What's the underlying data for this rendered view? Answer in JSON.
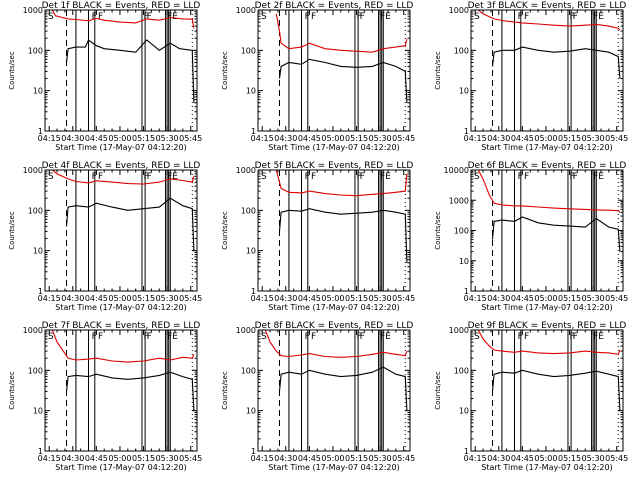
{
  "chart_data": [
    {
      "type": "line",
      "title": "Det 1f BLACK = Events, RED = LLD",
      "ylabel": "Counts/sec",
      "xlabel": "Start Time (17-May-07 04:12:20)",
      "ylim": [
        1,
        1000
      ],
      "yscale": "log",
      "y_ticks": [
        "1",
        "10",
        "100",
        "1000"
      ],
      "x_ticks": [
        "04:15",
        "04:30",
        "04:45",
        "05:00",
        "05:15",
        "05:30",
        "05:45"
      ],
      "markers": [
        "S",
        "F",
        "F",
        "F",
        "F",
        "FE"
      ],
      "series": [
        {
          "name": "RED = LLD",
          "color": "#dd0000",
          "x": [
            "04:17",
            "04:19",
            "04:27",
            "04:32",
            "04:40",
            "04:45",
            "04:50",
            "05:00",
            "05:10",
            "05:17",
            "05:25",
            "05:32",
            "05:40",
            "05:46",
            "05:47"
          ],
          "values": [
            1000,
            720,
            600,
            580,
            540,
            620,
            560,
            500,
            480,
            600,
            560,
            650,
            600,
            590,
            350
          ]
        },
        {
          "name": "BLACK = Events",
          "color": "#000000",
          "x": [
            "04:26",
            "04:27",
            "04:32",
            "04:38",
            "04:40",
            "04:45",
            "04:50",
            "05:00",
            "05:10",
            "05:17",
            "05:25",
            "05:32",
            "05:38",
            "05:46",
            "05:47"
          ],
          "values": [
            50,
            110,
            120,
            120,
            180,
            130,
            110,
            100,
            90,
            180,
            100,
            150,
            110,
            100,
            5
          ]
        }
      ]
    },
    {
      "type": "line",
      "title": "Det 2f BLACK = Events, RED = LLD",
      "ylabel": "Counts/sec",
      "xlabel": "Start Time (17-May-07 04:12:20)",
      "ylim": [
        1,
        1000
      ],
      "yscale": "log",
      "y_ticks": [
        "1",
        "10",
        "100",
        "1000"
      ],
      "x_ticks": [
        "04:15",
        "04:30",
        "04:45",
        "05:00",
        "05:15",
        "05:30",
        "05:45"
      ],
      "markers": [
        "S",
        "F",
        "F",
        "F",
        "F",
        "FE"
      ],
      "series": [
        {
          "name": "RED = LLD",
          "color": "#dd0000",
          "x": [
            "04:24",
            "04:26",
            "04:27",
            "04:32",
            "04:40",
            "04:45",
            "04:55",
            "05:05",
            "05:15",
            "05:25",
            "05:32",
            "05:40",
            "05:46",
            "05:47"
          ],
          "values": [
            800,
            300,
            150,
            110,
            120,
            150,
            110,
            100,
            95,
            90,
            110,
            120,
            130,
            190
          ]
        },
        {
          "name": "BLACK = Events",
          "color": "#000000",
          "x": [
            "04:26",
            "04:27",
            "04:32",
            "04:40",
            "04:45",
            "04:55",
            "05:05",
            "05:15",
            "05:25",
            "05:32",
            "05:40",
            "05:46",
            "05:47"
          ],
          "values": [
            20,
            40,
            50,
            45,
            60,
            50,
            40,
            38,
            40,
            50,
            40,
            30,
            5
          ]
        }
      ]
    },
    {
      "type": "line",
      "title": "Det 3f BLACK = Events, RED = LLD",
      "ylabel": "Counts/sec",
      "xlabel": "Start Time (17-May-07 04:12:20)",
      "ylim": [
        1,
        1000
      ],
      "yscale": "log",
      "y_ticks": [
        "1",
        "10",
        "100",
        "1000"
      ],
      "x_ticks": [
        "04:15",
        "04:30",
        "04:45",
        "05:00",
        "05:15",
        "05:30",
        "05:45"
      ],
      "markers": [
        "S",
        "F",
        "F",
        "F",
        "F",
        "FE"
      ],
      "series": [
        {
          "name": "RED = LLD",
          "color": "#dd0000",
          "x": [
            "04:17",
            "04:20",
            "04:27",
            "04:32",
            "04:40",
            "04:45",
            "04:55",
            "05:05",
            "05:15",
            "05:25",
            "05:32",
            "05:40",
            "05:46",
            "05:47"
          ],
          "values": [
            1000,
            800,
            600,
            550,
            500,
            480,
            450,
            420,
            400,
            420,
            440,
            400,
            350,
            320
          ]
        },
        {
          "name": "BLACK = Events",
          "color": "#000000",
          "x": [
            "04:26",
            "04:27",
            "04:32",
            "04:40",
            "04:45",
            "04:55",
            "05:05",
            "05:15",
            "05:25",
            "05:32",
            "05:40",
            "05:46",
            "05:47"
          ],
          "values": [
            40,
            90,
            100,
            100,
            120,
            100,
            90,
            95,
            110,
            100,
            90,
            70,
            20
          ]
        }
      ]
    },
    {
      "type": "line",
      "title": "Det 4f BLACK = Events, RED = LLD",
      "ylabel": "Counts/sec",
      "xlabel": "Start Time (17-May-07 04:12:20)",
      "ylim": [
        1,
        1000
      ],
      "yscale": "log",
      "y_ticks": [
        "1",
        "10",
        "100",
        "1000"
      ],
      "x_ticks": [
        "04:15",
        "04:30",
        "04:45",
        "05:00",
        "05:15",
        "05:30",
        "05:45"
      ],
      "markers": [
        "S",
        "F",
        "F",
        "F",
        "F",
        "FE"
      ],
      "series": [
        {
          "name": "RED = LLD",
          "color": "#dd0000",
          "x": [
            "04:17",
            "04:20",
            "04:27",
            "04:32",
            "04:40",
            "04:45",
            "04:55",
            "05:05",
            "05:15",
            "05:25",
            "05:32",
            "05:40",
            "05:46",
            "05:47"
          ],
          "values": [
            1000,
            800,
            600,
            520,
            480,
            540,
            500,
            460,
            450,
            500,
            600,
            550,
            500,
            700
          ]
        },
        {
          "name": "BLACK = Events",
          "color": "#000000",
          "x": [
            "04:26",
            "04:27",
            "04:32",
            "04:40",
            "04:45",
            "04:55",
            "05:05",
            "05:15",
            "05:25",
            "05:32",
            "05:40",
            "05:46",
            "05:47"
          ],
          "values": [
            40,
            120,
            130,
            120,
            150,
            120,
            100,
            110,
            120,
            200,
            130,
            110,
            10
          ]
        }
      ]
    },
    {
      "type": "line",
      "title": "Det 5f BLACK = Events, RED = LLD",
      "ylabel": "Counts/sec",
      "xlabel": "Start Time (17-May-07 04:12:20)",
      "ylim": [
        1,
        1000
      ],
      "yscale": "log",
      "y_ticks": [
        "1",
        "10",
        "100",
        "1000"
      ],
      "x_ticks": [
        "04:15",
        "04:30",
        "04:45",
        "05:00",
        "05:15",
        "05:30",
        "05:45"
      ],
      "markers": [
        "S",
        "F",
        "F",
        "F",
        "F",
        "FE"
      ],
      "series": [
        {
          "name": "RED = LLD",
          "color": "#dd0000",
          "x": [
            "04:24",
            "04:26",
            "04:27",
            "04:32",
            "04:40",
            "04:45",
            "04:55",
            "05:05",
            "05:15",
            "05:25",
            "05:32",
            "05:40",
            "05:46",
            "05:47"
          ],
          "values": [
            1000,
            500,
            350,
            280,
            270,
            300,
            260,
            240,
            230,
            250,
            260,
            280,
            300,
            800
          ]
        },
        {
          "name": "BLACK = Events",
          "color": "#000000",
          "x": [
            "04:26",
            "04:27",
            "04:32",
            "04:40",
            "04:45",
            "04:55",
            "05:05",
            "05:15",
            "05:25",
            "05:32",
            "05:40",
            "05:46",
            "05:47"
          ],
          "values": [
            30,
            90,
            100,
            95,
            110,
            90,
            80,
            85,
            90,
            100,
            90,
            80,
            5
          ]
        }
      ]
    },
    {
      "type": "line",
      "title": "Det 6f BLACK = Events, RED = LLD",
      "ylabel": "Counts/sec",
      "xlabel": "Start Time (17-May-07 04:12:20)",
      "ylim": [
        1,
        10000
      ],
      "yscale": "log",
      "y_ticks": [
        "1",
        "10",
        "100",
        "1000",
        "10000"
      ],
      "x_ticks": [
        "04:15",
        "04:30",
        "04:45",
        "05:00",
        "05:15",
        "05:30",
        "05:45"
      ],
      "markers": [
        "S",
        "F",
        "F",
        "F",
        "F",
        "FE"
      ],
      "series": [
        {
          "name": "RED = LLD",
          "color": "#dd0000",
          "x": [
            "04:17",
            "04:20",
            "04:24",
            "04:27",
            "04:32",
            "04:40",
            "04:45",
            "04:55",
            "05:05",
            "05:15",
            "05:25",
            "05:32",
            "05:40",
            "05:46",
            "05:47"
          ],
          "values": [
            10000,
            5000,
            1500,
            800,
            700,
            650,
            650,
            600,
            550,
            520,
            500,
            480,
            470,
            450,
            400
          ]
        },
        {
          "name": "BLACK = Events",
          "color": "#000000",
          "x": [
            "04:26",
            "04:27",
            "04:32",
            "04:40",
            "04:45",
            "04:55",
            "05:05",
            "05:15",
            "05:25",
            "05:32",
            "05:40",
            "05:46",
            "05:47"
          ],
          "values": [
            50,
            200,
            220,
            200,
            280,
            180,
            150,
            140,
            130,
            250,
            130,
            110,
            20
          ]
        }
      ]
    },
    {
      "type": "line",
      "title": "Det 7f BLACK = Events, RED = LLD",
      "ylabel": "Counts/sec",
      "xlabel": "Start Time (17-May-07 04:12:20)",
      "ylim": [
        1,
        1000
      ],
      "yscale": "log",
      "y_ticks": [
        "1",
        "10",
        "100",
        "1000"
      ],
      "x_ticks": [
        "04:15",
        "04:30",
        "04:45",
        "05:00",
        "05:15",
        "05:30",
        "05:45"
      ],
      "markers": [
        "S",
        "F",
        "F",
        "F",
        "F",
        "FE"
      ],
      "series": [
        {
          "name": "RED = LLD",
          "color": "#dd0000",
          "x": [
            "04:17",
            "04:20",
            "04:24",
            "04:27",
            "04:32",
            "04:40",
            "04:45",
            "04:55",
            "05:05",
            "05:15",
            "05:25",
            "05:32",
            "05:40",
            "05:46",
            "05:47"
          ],
          "values": [
            1000,
            500,
            300,
            200,
            180,
            190,
            200,
            170,
            160,
            170,
            200,
            180,
            210,
            200,
            250
          ]
        },
        {
          "name": "BLACK = Events",
          "color": "#000000",
          "x": [
            "04:26",
            "04:27",
            "04:32",
            "04:40",
            "04:45",
            "04:55",
            "05:05",
            "05:15",
            "05:25",
            "05:32",
            "05:40",
            "05:46",
            "05:47"
          ],
          "values": [
            30,
            70,
            75,
            70,
            80,
            65,
            60,
            65,
            75,
            90,
            70,
            60,
            10
          ]
        }
      ]
    },
    {
      "type": "line",
      "title": "Det 8f BLACK = Events, RED = LLD",
      "ylabel": "Counts/sec",
      "xlabel": "Start Time (17-May-07 04:12:20)",
      "ylim": [
        1,
        1000
      ],
      "yscale": "log",
      "y_ticks": [
        "1",
        "10",
        "100",
        "1000"
      ],
      "x_ticks": [
        "04:15",
        "04:30",
        "04:45",
        "05:00",
        "05:15",
        "05:30",
        "05:45"
      ],
      "markers": [
        "S",
        "F",
        "F",
        "F",
        "F",
        "FE"
      ],
      "series": [
        {
          "name": "RED = LLD",
          "color": "#dd0000",
          "x": [
            "04:17",
            "04:20",
            "04:24",
            "04:27",
            "04:32",
            "04:40",
            "04:45",
            "04:55",
            "05:05",
            "05:15",
            "05:25",
            "05:32",
            "05:40",
            "05:46",
            "05:47"
          ],
          "values": [
            1000,
            500,
            300,
            230,
            220,
            240,
            260,
            220,
            210,
            220,
            250,
            280,
            250,
            230,
            300
          ]
        },
        {
          "name": "BLACK = Events",
          "color": "#000000",
          "x": [
            "04:26",
            "04:27",
            "04:32",
            "04:40",
            "04:45",
            "04:55",
            "05:05",
            "05:15",
            "05:25",
            "05:32",
            "05:40",
            "05:46",
            "05:47"
          ],
          "values": [
            30,
            80,
            90,
            80,
            100,
            80,
            70,
            75,
            90,
            120,
            80,
            70,
            10
          ]
        }
      ]
    },
    {
      "type": "line",
      "title": "Det 9f BLACK = Events, RED = LLD",
      "ylabel": "Counts/sec",
      "xlabel": "Start Time (17-May-07 04:12:20)",
      "ylim": [
        1,
        1000
      ],
      "yscale": "log",
      "y_ticks": [
        "1",
        "10",
        "100",
        "1000"
      ],
      "x_ticks": [
        "04:15",
        "04:30",
        "04:45",
        "05:00",
        "05:15",
        "05:30",
        "05:45"
      ],
      "markers": [
        "S",
        "F",
        "F",
        "F",
        "F",
        "FE"
      ],
      "series": [
        {
          "name": "RED = LLD",
          "color": "#dd0000",
          "x": [
            "04:17",
            "04:20",
            "04:24",
            "04:27",
            "04:32",
            "04:40",
            "04:45",
            "04:55",
            "05:05",
            "05:15",
            "05:25",
            "05:32",
            "05:40",
            "05:46",
            "05:47"
          ],
          "values": [
            1000,
            600,
            400,
            320,
            300,
            280,
            300,
            270,
            260,
            270,
            300,
            280,
            270,
            250,
            320
          ]
        },
        {
          "name": "BLACK = Events",
          "color": "#000000",
          "x": [
            "04:26",
            "04:27",
            "04:32",
            "04:40",
            "04:45",
            "04:55",
            "05:05",
            "05:15",
            "05:25",
            "05:32",
            "05:40",
            "05:46",
            "05:47"
          ],
          "values": [
            30,
            80,
            90,
            85,
            100,
            80,
            70,
            75,
            85,
            95,
            80,
            70,
            10
          ]
        }
      ]
    }
  ]
}
